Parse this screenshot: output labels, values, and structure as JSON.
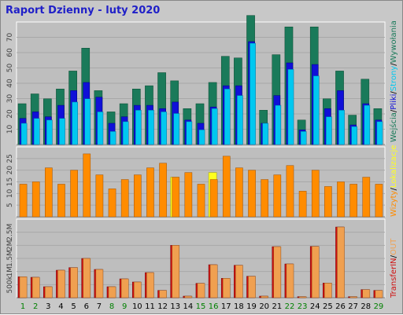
{
  "title": "Raport Dzienny -  luty 2020",
  "colors": {
    "background": "#c8c8c8",
    "panel": "#bebebe",
    "wejscia": "#1a7a5a",
    "pliki": "#1010d8",
    "strony": "#00c8f0",
    "wizyty": "#ff8c00",
    "lokalizacje": "#ffff20",
    "transfer_in": "#d01010",
    "transfer_out": "#f0a050",
    "weekend_label": "#008000",
    "weekday_label": "#000000"
  },
  "chart_data": [
    {
      "type": "bar",
      "panel": "top",
      "categories": [
        "1",
        "2",
        "3",
        "4",
        "5",
        "6",
        "7",
        "8",
        "9",
        "10",
        "11",
        "12",
        "13",
        "14",
        "15",
        "16",
        "17",
        "18",
        "19",
        "20",
        "21",
        "22",
        "23",
        "24",
        "25",
        "26",
        "27",
        "28",
        "29"
      ],
      "ylim": [
        0,
        75
      ],
      "yticks": [
        "10",
        "20",
        "30",
        "40",
        "50",
        "60",
        "70"
      ],
      "side_labels": [
        "Wejścia",
        "/",
        "Pliki",
        "/",
        "Strony",
        "/",
        "Wywołania"
      ],
      "series": [
        {
          "name": "Wejścia",
          "values": [
            25,
            31,
            28,
            34,
            45,
            59,
            33,
            20,
            25,
            34,
            36,
            44,
            39,
            22,
            25,
            38,
            54,
            53,
            79,
            21,
            55,
            72,
            15,
            72,
            28,
            45,
            18,
            40,
            22
          ]
        },
        {
          "name": "Pliki",
          "values": [
            16,
            20,
            17,
            24,
            33,
            38,
            29,
            13,
            17,
            24,
            24,
            22,
            26,
            15,
            13,
            23,
            36,
            36,
            63,
            13,
            30,
            50,
            9,
            49,
            22,
            33,
            12,
            25,
            15
          ]
        },
        {
          "name": "Strony",
          "values": [
            13,
            16,
            15,
            16,
            26,
            28,
            20,
            8,
            14,
            21,
            21,
            20,
            19,
            14,
            9,
            22,
            34,
            30,
            62,
            13,
            24,
            46,
            8,
            42,
            17,
            21,
            11,
            24,
            14
          ]
        }
      ]
    },
    {
      "type": "bar",
      "panel": "middle",
      "categories": [
        "1",
        "2",
        "3",
        "4",
        "5",
        "6",
        "7",
        "8",
        "9",
        "10",
        "11",
        "12",
        "13",
        "14",
        "15",
        "16",
        "17",
        "18",
        "19",
        "20",
        "21",
        "22",
        "23",
        "24",
        "25",
        "26",
        "27",
        "28",
        "29"
      ],
      "ylim": [
        0,
        30
      ],
      "yticks": [
        "5",
        "10",
        "15",
        "20",
        "25"
      ],
      "side_labels": [
        "Wizyty",
        "/",
        "Lokalizacje"
      ],
      "series": [
        {
          "name": "Wizyty",
          "values": [
            14,
            15,
            21,
            14,
            20,
            27,
            18,
            12,
            16,
            18,
            21,
            23,
            17,
            19,
            14,
            16,
            26,
            21,
            20,
            16,
            18,
            22,
            11,
            20,
            13,
            15,
            14,
            17,
            14
          ]
        },
        {
          "name": "Lokalizacje",
          "values": [
            0,
            0,
            0,
            0,
            0,
            0,
            0,
            0,
            0,
            0,
            0,
            0,
            17,
            0,
            0,
            19,
            0,
            0,
            0,
            0,
            0,
            0,
            0,
            0,
            0,
            0,
            0,
            0,
            0
          ]
        }
      ]
    },
    {
      "type": "bar",
      "panel": "bottom",
      "categories": [
        "1",
        "2",
        "3",
        "4",
        "5",
        "6",
        "7",
        "8",
        "9",
        "10",
        "11",
        "12",
        "13",
        "14",
        "15",
        "16",
        "17",
        "18",
        "19",
        "20",
        "21",
        "22",
        "23",
        "24",
        "25",
        "26",
        "27",
        "28",
        "29"
      ],
      "ylim": [
        0,
        3000
      ],
      "yticks": [
        "500k",
        "1M",
        "1.5M",
        "2M",
        "2.5M"
      ],
      "side_labels": [
        "Transfer",
        "IN",
        "/",
        "OUT"
      ],
      "series": [
        {
          "name": "IN",
          "values": [
            800,
            780,
            420,
            1050,
            1150,
            1500,
            1080,
            420,
            720,
            600,
            960,
            280,
            2000,
            60,
            550,
            1260,
            740,
            1240,
            820,
            60,
            1950,
            1290,
            40,
            1960,
            560,
            2700,
            40,
            310,
            280
          ]
        },
        {
          "name": "OUT",
          "values": [
            800,
            780,
            420,
            1050,
            1150,
            1500,
            1080,
            420,
            720,
            600,
            960,
            280,
            2000,
            60,
            550,
            1260,
            740,
            1240,
            820,
            60,
            1950,
            1290,
            40,
            1960,
            560,
            2700,
            40,
            310,
            280
          ]
        }
      ]
    }
  ],
  "weekend_days": [
    1,
    2,
    8,
    9,
    15,
    16,
    22,
    23,
    29
  ]
}
